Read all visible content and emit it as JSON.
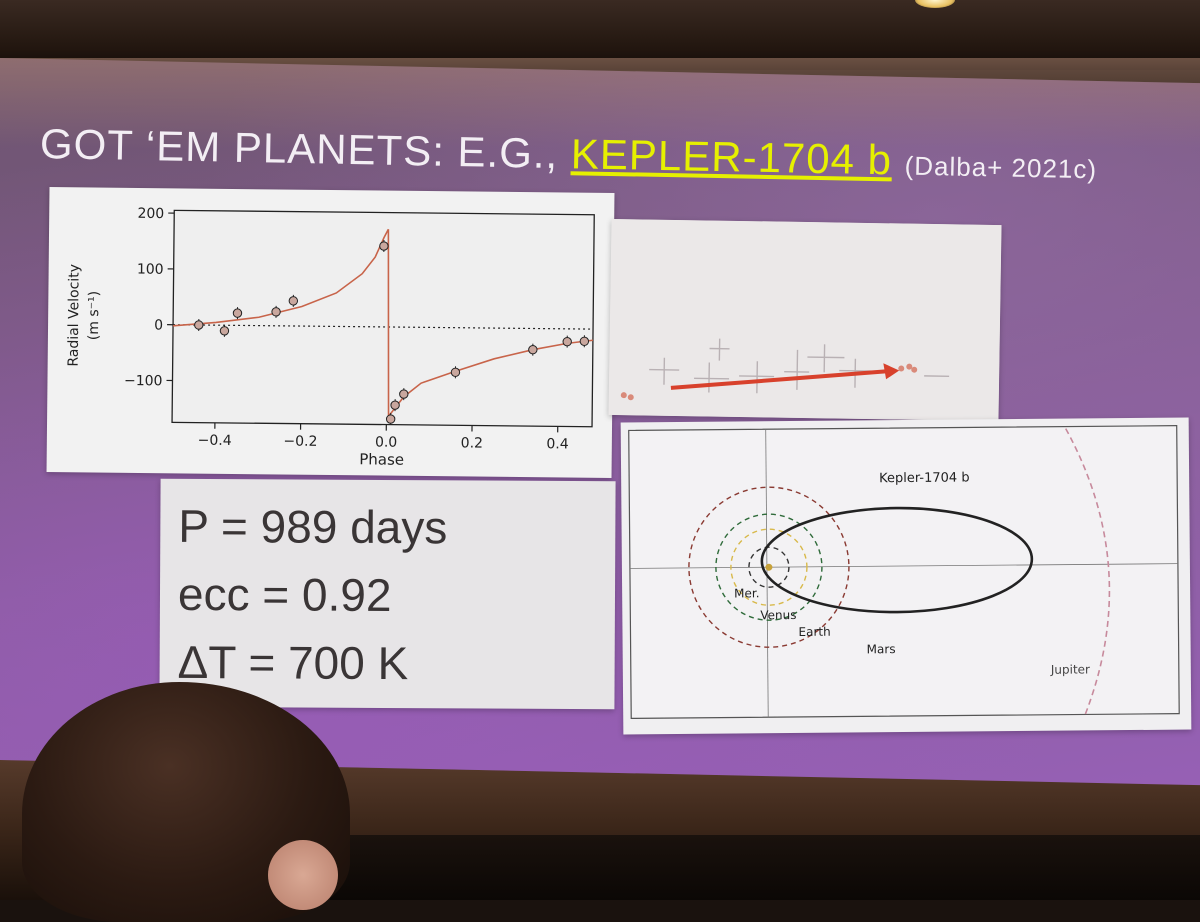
{
  "slide": {
    "title_prefix": "GOT ‘EM PLANETS: E.G., ",
    "title_link": "KEPLER-1704 b",
    "title_ref": "(Dalba+ 2021c)"
  },
  "params": {
    "period": "P = 989 days",
    "eccentricity": "ecc = 0.92",
    "delta_t": "ΔT = 700 K"
  },
  "chart_data": [
    {
      "type": "scatter",
      "xlabel": "Phase",
      "ylabel_line1": "Radial Velocity",
      "ylabel_line2": "(m s⁻¹)",
      "xlim": [
        -0.5,
        0.48
      ],
      "ylim": [
        -175,
        205
      ],
      "xticks": [
        -0.4,
        -0.2,
        0.0,
        0.2,
        0.4
      ],
      "xtick_labels": [
        "−0.4",
        "−0.2",
        "0.0",
        "0.2",
        "0.4"
      ],
      "yticks": [
        200,
        100,
        0,
        -100
      ],
      "ytick_labels": [
        "200",
        "100",
        "0",
        "−100"
      ],
      "points": [
        {
          "x": -0.44,
          "y": 0
        },
        {
          "x": -0.38,
          "y": -10
        },
        {
          "x": -0.35,
          "y": 22
        },
        {
          "x": -0.26,
          "y": 25
        },
        {
          "x": -0.22,
          "y": 45
        },
        {
          "x": -0.01,
          "y": 145
        },
        {
          "x": 0.01,
          "y": -165
        },
        {
          "x": 0.02,
          "y": -140
        },
        {
          "x": 0.04,
          "y": -120
        },
        {
          "x": 0.16,
          "y": -80
        },
        {
          "x": 0.34,
          "y": -38
        },
        {
          "x": 0.42,
          "y": -23
        },
        {
          "x": 0.46,
          "y": -22
        }
      ],
      "model_curve": {
        "color": "#c8644a",
        "pre_x": [
          -0.5,
          -0.4,
          -0.3,
          -0.2,
          -0.12,
          -0.06,
          -0.03,
          -0.01,
          0.0
        ],
        "pre_y": [
          -2,
          5,
          15,
          35,
          60,
          95,
          125,
          160,
          175
        ],
        "post_x": [
          0.0,
          0.005,
          0.015,
          0.04,
          0.08,
          0.16,
          0.25,
          0.34,
          0.42,
          0.48
        ],
        "post_y": [
          175,
          -160,
          -150,
          -125,
          -100,
          -78,
          -55,
          -38,
          -26,
          -20
        ]
      },
      "zero_line": "dotted",
      "grid": false
    }
  ],
  "orbit_diagram": {
    "planet_label": "Kepler-1704 b",
    "orbit_labels": [
      "Mer.",
      "Venus",
      "Earth",
      "Mars",
      "Jupiter"
    ],
    "colors": {
      "mercury": "#333333",
      "venus": "#d8b94a",
      "earth": "#2f6b3a",
      "mars": "#8a3a32",
      "jupiter": "#c78a9c",
      "planet": "#222222"
    }
  }
}
